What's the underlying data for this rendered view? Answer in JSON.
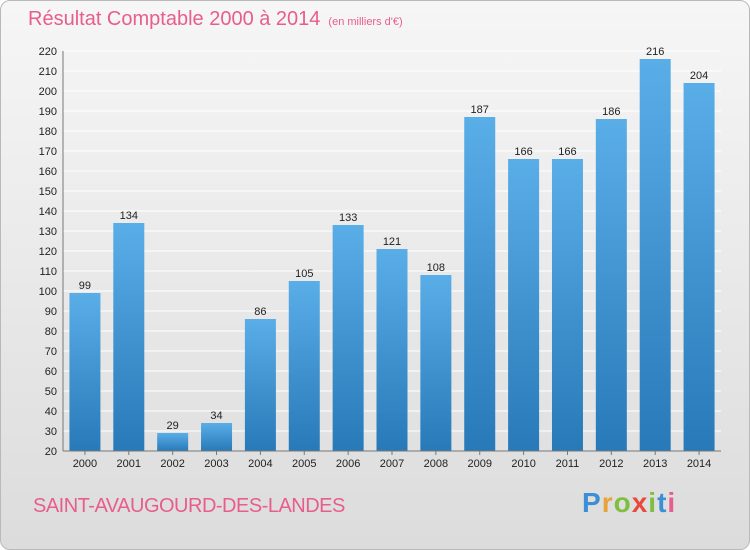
{
  "title": "Résultat Comptable 2000 à 2014",
  "unit_note": "(en milliers d'€)",
  "city": "SAINT-AVAUGOURD-DES-LANDES",
  "logo": {
    "letters": [
      "P",
      "r",
      "o",
      "x",
      "i",
      "t",
      "i"
    ],
    "colors": [
      "#3a8fd6",
      "#e8a33a",
      "#7fbf3f",
      "#e8493a",
      "#7fbf3f",
      "#3a8fd6",
      "#e85d8d"
    ]
  },
  "colors": {
    "accent": "#e85d8d",
    "bar_top": "#5aaee8",
    "bar_bottom": "#2879b8",
    "grid": "#ffffff"
  },
  "chart_data": {
    "type": "bar",
    "categories": [
      "2000",
      "2001",
      "2002",
      "2003",
      "2004",
      "2005",
      "2006",
      "2007",
      "2008",
      "2009",
      "2010",
      "2011",
      "2012",
      "2013",
      "2014"
    ],
    "values": [
      99,
      134,
      29,
      34,
      86,
      105,
      133,
      121,
      108,
      187,
      166,
      166,
      186,
      216,
      204
    ],
    "ylim": [
      20,
      220
    ],
    "ytick_step": 10,
    "grid": true
  }
}
